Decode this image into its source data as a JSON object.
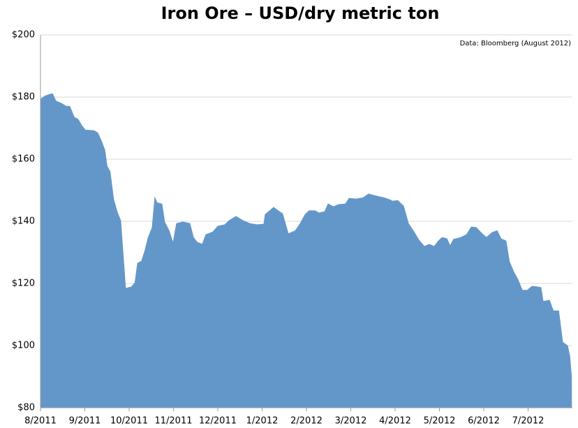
{
  "chart_data": {
    "type": "area",
    "title": "Iron Ore – USD/dry metric ton",
    "annotation": "Data: Bloomberg (August 2012)",
    "color": "#6497c9",
    "grid": true,
    "xlim": [
      0,
      12
    ],
    "xticks": [
      {
        "value": 0,
        "label": "8/2011"
      },
      {
        "value": 1,
        "label": "9/2011"
      },
      {
        "value": 2,
        "label": "10/2011"
      },
      {
        "value": 3,
        "label": "11/2011"
      },
      {
        "value": 4,
        "label": "12/2011"
      },
      {
        "value": 5,
        "label": "1/2012"
      },
      {
        "value": 6,
        "label": "2/2012"
      },
      {
        "value": 7,
        "label": "3/2012"
      },
      {
        "value": 8,
        "label": "4/2012"
      },
      {
        "value": 9,
        "label": "5/2012"
      },
      {
        "value": 10,
        "label": "6/2012"
      },
      {
        "value": 11,
        "label": "7/2012"
      }
    ],
    "ylim": [
      80,
      200
    ],
    "yticks": [
      {
        "value": 80,
        "label": "$80"
      },
      {
        "value": 100,
        "label": "$100"
      },
      {
        "value": 120,
        "label": "$120"
      },
      {
        "value": 140,
        "label": "$140"
      },
      {
        "value": 160,
        "label": "$160"
      },
      {
        "value": 180,
        "label": "$180"
      },
      {
        "value": 200,
        "label": "$200"
      }
    ],
    "x": [
      0,
      0.11,
      0.27,
      0.35,
      0.47,
      0.58,
      0.66,
      0.76,
      0.85,
      0.93,
      1.01,
      1.21,
      1.29,
      1.37,
      1.45,
      1.5,
      1.57,
      1.65,
      1.73,
      1.81,
      1.92,
      2.05,
      2.13,
      2.19,
      2.28,
      2.36,
      2.43,
      2.52,
      2.58,
      2.63,
      2.74,
      2.8,
      2.9,
      2.99,
      3.07,
      3.21,
      3.37,
      3.45,
      3.53,
      3.65,
      3.73,
      3.89,
      4,
      4.16,
      4.25,
      4.41,
      4.57,
      4.72,
      4.88,
      5.04,
      5.07,
      5.26,
      5.39,
      5.46,
      5.59,
      5.75,
      5.86,
      5.97,
      6.06,
      6.2,
      6.28,
      6.41,
      6.49,
      6.61,
      6.72,
      6.88,
      6.96,
      7.12,
      7.28,
      7.4,
      7.59,
      7.75,
      7.87,
      7.94,
      8.06,
      8.19,
      8.3,
      8.41,
      8.54,
      8.66,
      8.77,
      8.88,
      8.98,
      9.06,
      9.17,
      9.24,
      9.32,
      9.48,
      9.61,
      9.72,
      9.83,
      9.95,
      10.06,
      10.19,
      10.3,
      10.39,
      10.5,
      10.58,
      10.68,
      10.77,
      10.87,
      10.98,
      11.09,
      11.21,
      11.29,
      11.34,
      11.48,
      11.57,
      11.69,
      11.78,
      11.89,
      11.94,
      11.98
    ],
    "values": [
      179.3,
      180.4,
      181.1,
      178.7,
      178,
      177,
      177,
      173.5,
      172.8,
      170.8,
      169.4,
      169.2,
      168.5,
      166,
      163,
      157.8,
      156,
      147,
      143,
      140.2,
      118.4,
      118.9,
      120.2,
      126.5,
      127.2,
      130.8,
      134.8,
      138,
      147.6,
      146,
      145.6,
      139.8,
      137,
      133,
      139.3,
      139.8,
      139.3,
      134.8,
      133.3,
      132.6,
      135.7,
      136.6,
      138.4,
      138.9,
      140.2,
      141.6,
      140.2,
      139.3,
      138.9,
      139.1,
      142.2,
      144.5,
      143.1,
      142.5,
      136,
      137,
      139.3,
      142.2,
      143.4,
      143.4,
      142.7,
      143.1,
      145.6,
      144.7,
      145.4,
      145.6,
      147.4,
      147.2,
      147.6,
      148.8,
      148.1,
      147.6,
      147,
      146.5,
      146.7,
      144.9,
      139.3,
      137,
      133.9,
      131.9,
      132.6,
      131.9,
      133.7,
      134.8,
      134.4,
      132.1,
      134.2,
      134.8,
      135.7,
      138.2,
      138,
      136.2,
      134.8,
      136.4,
      137,
      134.4,
      133.7,
      127,
      123.6,
      121.3,
      117.8,
      117.8,
      119.1,
      118.9,
      118.7,
      114.2,
      114.6,
      111.2,
      111.2,
      101.1,
      100,
      96.6,
      89.9
    ]
  }
}
